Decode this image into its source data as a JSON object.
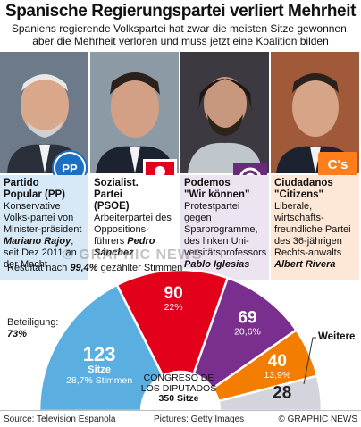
{
  "title": "Spanische Regierungspartei verliert Mehrheit",
  "subtitle_line1": "Spaniens regierende Volkspartei hat zwar die meisten Sitze gewonnen,",
  "subtitle_line2": "aber die Mehrheit verloren und muss jetzt eine Koalition bilden",
  "parties": [
    {
      "name_line1": "Partido",
      "name_line2": "Popular (PP)",
      "desc_before": "Konservative Volks-partei von Minister-präsident ",
      "leader": "Mariano Rajoy",
      "desc_after": ", seit Dez 2011 an der Macht",
      "logo": "PP",
      "color": "#5baee0"
    },
    {
      "name_line1": "Sozialist.",
      "name_line2": "Partei",
      "name_line3": "(PSOE)",
      "desc_before": "Arbeiterpartei des Oppositions-führers ",
      "leader": "Pedro Sánchez",
      "desc_after": "",
      "logo": "psoe-rose-icon",
      "color": "#e2001a"
    },
    {
      "name_line1": "Podemos",
      "name_line2": "\"Wir können\"",
      "desc_before": "Protestpartei gegen Sparprogramme, des linken Uni-versitätsprofessors ",
      "leader": "Pablo Iglesias",
      "desc_after": "",
      "logo": "podemos-circles-icon",
      "color": "#6a2a7b"
    },
    {
      "name_line1": "Ciudadanos",
      "name_line2": "\"Citizens\"",
      "desc_before": "Liberale, wirtschafts-freundliche Partei des 36-jährigen Rechts-anwalts ",
      "leader": "Albert Rivera",
      "desc_after": "",
      "logo": "C's",
      "color": "#f27d00"
    }
  ],
  "watermark": "© GRAPHIC NEWS",
  "result_note_before": "Resultat nach ",
  "result_note_pct": "99,4%",
  "result_note_after": " gezählter Stimmen",
  "turnout_label": "Beteiligung:",
  "turnout_value": "73%",
  "chart_data": {
    "type": "pie",
    "title": "CONGRESO DE LOS DIPUTADOS",
    "total_label": "350 Sitze",
    "total": 350,
    "slices": [
      {
        "party": "PP",
        "seats": 123,
        "unit": "Sitze",
        "percent_label": "28,7% Stimmen",
        "color": "#5baee0"
      },
      {
        "party": "PSOE",
        "seats": 90,
        "percent_label": "22%",
        "color": "#e2001a"
      },
      {
        "party": "Podemos",
        "seats": 69,
        "percent_label": "20,6%",
        "color": "#7a2e8e"
      },
      {
        "party": "Ciudadanos",
        "seats": 40,
        "percent_label": "13,9%",
        "color": "#f27d00"
      },
      {
        "party": "Weitere",
        "seats": 28,
        "percent_label": "",
        "color": "#d4d4dc"
      }
    ],
    "others_label": "Weitere"
  },
  "center_title_line1": "CONGRESO DE",
  "center_title_line2": "LOS DIPUTADOS",
  "footer": {
    "source": "Source: Television Espanola",
    "pictures": "Pictures: Getty Images",
    "copyright": "© GRAPHIC NEWS"
  }
}
